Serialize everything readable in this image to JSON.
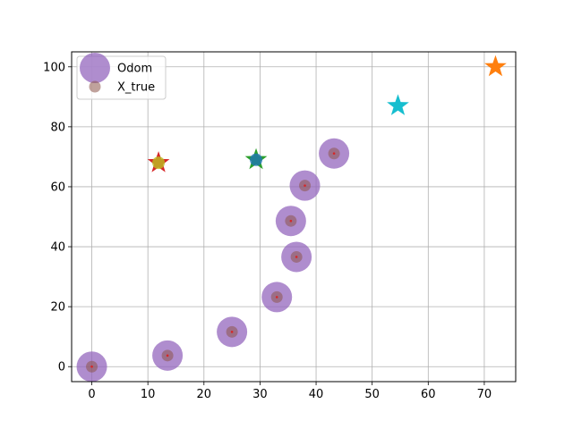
{
  "chart_data": {
    "type": "scatter",
    "xlim": [
      -3.6,
      75.6
    ],
    "ylim": [
      -5,
      105
    ],
    "x_ticks": [
      0,
      10,
      20,
      30,
      40,
      50,
      60,
      70
    ],
    "y_ticks": [
      0,
      20,
      40,
      60,
      80,
      100
    ],
    "grid": true,
    "legend_position": "top-left",
    "series": [
      {
        "name": "Odom",
        "marker": "circle-large",
        "color": "#9467bd",
        "x": [
          0,
          13.5,
          25,
          33,
          36.5,
          35.5,
          38,
          43.2
        ],
        "y": [
          0,
          3.7,
          11.6,
          23.2,
          36.6,
          48.6,
          60.4,
          71.1
        ]
      },
      {
        "name": "X_true",
        "marker": "circle-small",
        "color": "#8c564b",
        "x": [
          0,
          13.5,
          25,
          33,
          36.5,
          35.5,
          38,
          43.2
        ],
        "y": [
          0,
          3.7,
          11.6,
          23.2,
          36.6,
          48.6,
          60.4,
          71.1
        ]
      }
    ],
    "landmarks": [
      {
        "x": 11.9,
        "y": 68,
        "color": "#d62728"
      },
      {
        "x": 29.3,
        "y": 69,
        "color": "#2ca02c"
      },
      {
        "x": 54.6,
        "y": 87,
        "color": "#17becf"
      },
      {
        "x": 72,
        "y": 100,
        "color": "#ff7f0e"
      }
    ],
    "landmark_dots": [
      {
        "x": 11.9,
        "y": 68,
        "color": "#bcbd22"
      },
      {
        "x": 29.3,
        "y": 69,
        "color": "#1f77b4"
      }
    ]
  }
}
